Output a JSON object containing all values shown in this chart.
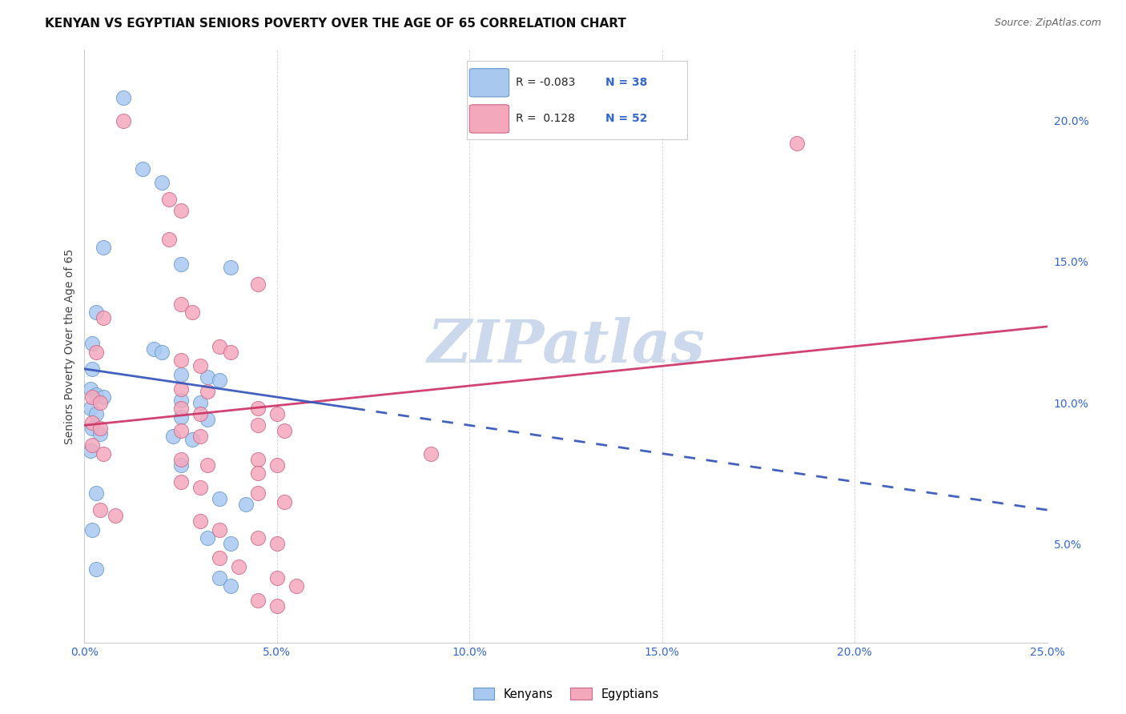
{
  "title": "KENYAN VS EGYPTIAN SENIORS POVERTY OVER THE AGE OF 65 CORRELATION CHART",
  "source": "Source: ZipAtlas.com",
  "ylabel": "Seniors Poverty Over the Age of 65",
  "kenyan_R": -0.083,
  "kenyan_N": 38,
  "egyptian_R": 0.128,
  "egyptian_N": 52,
  "kenyan_color": "#a8c8f0",
  "kenyan_edge_color": "#6699cc",
  "egyptian_color": "#f4a8bc",
  "egyptian_edge_color": "#cc6688",
  "kenyan_line_color": "#3355bb",
  "egyptian_line_color": "#cc3366",
  "watermark_color": "#ccd8ec",
  "xlim": [
    0.0,
    25.0
  ],
  "ylim": [
    1.5,
    22.5
  ],
  "x_tick_vals": [
    0.0,
    5.0,
    10.0,
    15.0,
    20.0,
    25.0
  ],
  "y_tick_vals": [
    5.0,
    10.0,
    15.0,
    20.0
  ],
  "title_fontsize": 11,
  "source_fontsize": 9,
  "kenyan_points": [
    [
      1.0,
      20.8
    ],
    [
      1.5,
      18.3
    ],
    [
      2.0,
      17.8
    ],
    [
      0.5,
      15.5
    ],
    [
      2.5,
      14.9
    ],
    [
      3.8,
      14.8
    ],
    [
      0.3,
      13.2
    ],
    [
      0.2,
      12.1
    ],
    [
      1.8,
      11.9
    ],
    [
      2.0,
      11.8
    ],
    [
      0.2,
      11.2
    ],
    [
      2.5,
      11.0
    ],
    [
      3.2,
      10.9
    ],
    [
      3.5,
      10.8
    ],
    [
      0.15,
      10.5
    ],
    [
      0.3,
      10.3
    ],
    [
      0.5,
      10.2
    ],
    [
      2.5,
      10.1
    ],
    [
      3.0,
      10.0
    ],
    [
      0.15,
      9.8
    ],
    [
      0.3,
      9.6
    ],
    [
      2.5,
      9.5
    ],
    [
      3.2,
      9.4
    ],
    [
      0.2,
      9.1
    ],
    [
      0.4,
      8.9
    ],
    [
      2.3,
      8.8
    ],
    [
      2.8,
      8.7
    ],
    [
      0.15,
      8.3
    ],
    [
      2.5,
      7.8
    ],
    [
      0.3,
      6.8
    ],
    [
      3.5,
      6.6
    ],
    [
      4.2,
      6.4
    ],
    [
      0.2,
      5.5
    ],
    [
      3.2,
      5.2
    ],
    [
      3.8,
      5.0
    ],
    [
      0.3,
      4.1
    ],
    [
      3.5,
      3.8
    ],
    [
      3.8,
      3.5
    ]
  ],
  "egyptian_points": [
    [
      1.0,
      20.0
    ],
    [
      2.2,
      17.2
    ],
    [
      2.5,
      16.8
    ],
    [
      2.2,
      15.8
    ],
    [
      4.5,
      14.2
    ],
    [
      2.5,
      13.5
    ],
    [
      2.8,
      13.2
    ],
    [
      0.5,
      13.0
    ],
    [
      3.5,
      12.0
    ],
    [
      3.8,
      11.8
    ],
    [
      0.3,
      11.8
    ],
    [
      2.5,
      11.5
    ],
    [
      3.0,
      11.3
    ],
    [
      2.5,
      10.5
    ],
    [
      3.2,
      10.4
    ],
    [
      0.2,
      10.2
    ],
    [
      0.4,
      10.0
    ],
    [
      2.5,
      9.8
    ],
    [
      3.0,
      9.6
    ],
    [
      4.5,
      9.8
    ],
    [
      5.0,
      9.6
    ],
    [
      0.2,
      9.3
    ],
    [
      0.4,
      9.1
    ],
    [
      2.5,
      9.0
    ],
    [
      3.0,
      8.8
    ],
    [
      4.5,
      9.2
    ],
    [
      5.2,
      9.0
    ],
    [
      0.2,
      8.5
    ],
    [
      0.5,
      8.2
    ],
    [
      2.5,
      8.0
    ],
    [
      3.2,
      7.8
    ],
    [
      4.5,
      8.0
    ],
    [
      5.0,
      7.8
    ],
    [
      2.5,
      7.2
    ],
    [
      3.0,
      7.0
    ],
    [
      4.5,
      7.5
    ],
    [
      4.5,
      6.8
    ],
    [
      5.2,
      6.5
    ],
    [
      0.4,
      6.2
    ],
    [
      0.8,
      6.0
    ],
    [
      3.0,
      5.8
    ],
    [
      3.5,
      5.5
    ],
    [
      4.5,
      5.2
    ],
    [
      5.0,
      5.0
    ],
    [
      3.5,
      4.5
    ],
    [
      4.0,
      4.2
    ],
    [
      5.0,
      3.8
    ],
    [
      5.5,
      3.5
    ],
    [
      4.5,
      3.0
    ],
    [
      5.0,
      2.8
    ],
    [
      9.0,
      8.2
    ],
    [
      18.5,
      19.2
    ]
  ]
}
